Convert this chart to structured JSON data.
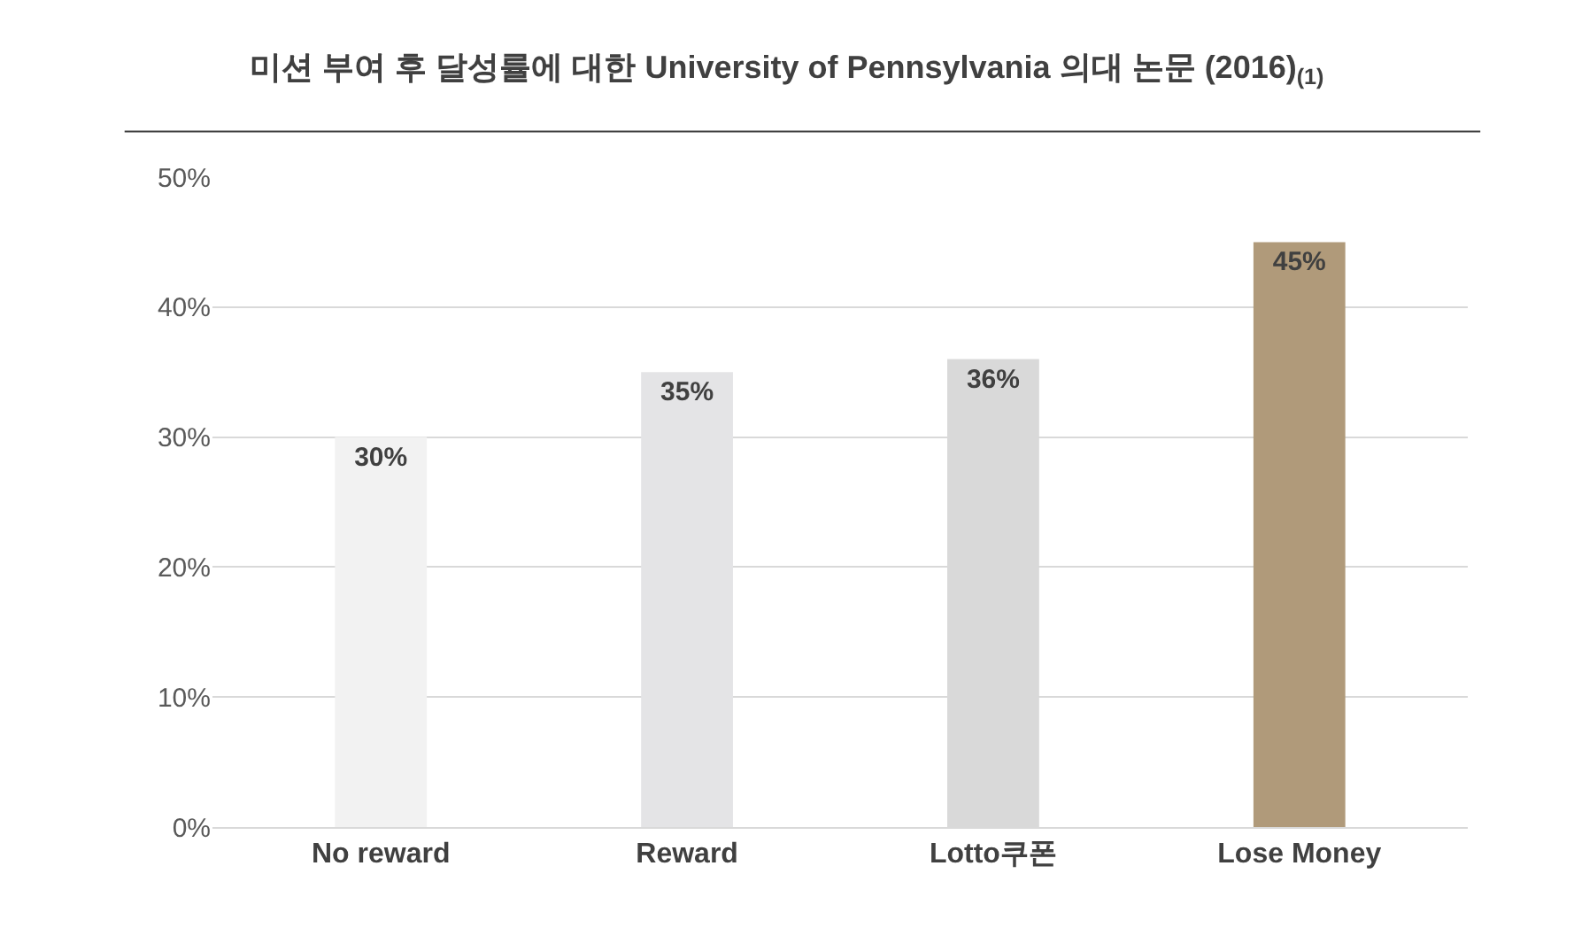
{
  "chart_data": {
    "type": "bar",
    "title": "미션 부여 후 달성률에 대한 University of Pennsylvania 의대 논문 (2016)$_{(1)}$",
    "categories": [
      "No reward",
      "Reward",
      "Lotto쿠폰",
      "Lose Money"
    ],
    "values": [
      30,
      35,
      36,
      45
    ],
    "colors": [
      "#f2f2f2",
      "#e4e4e6",
      "#d9d9d9",
      "#b09a7a"
    ],
    "value_labels": [
      "30%",
      "35%",
      "36%",
      "45%"
    ],
    "ylim": [
      0,
      50
    ],
    "yticks": [
      {
        "value": 0,
        "label": "0%"
      },
      {
        "value": 10,
        "label": "10%"
      },
      {
        "value": 20,
        "label": "20%"
      },
      {
        "value": 30,
        "label": "30%"
      },
      {
        "value": 40,
        "label": "40%"
      },
      {
        "value": 50,
        "label": "50%"
      }
    ],
    "grid": "y"
  }
}
